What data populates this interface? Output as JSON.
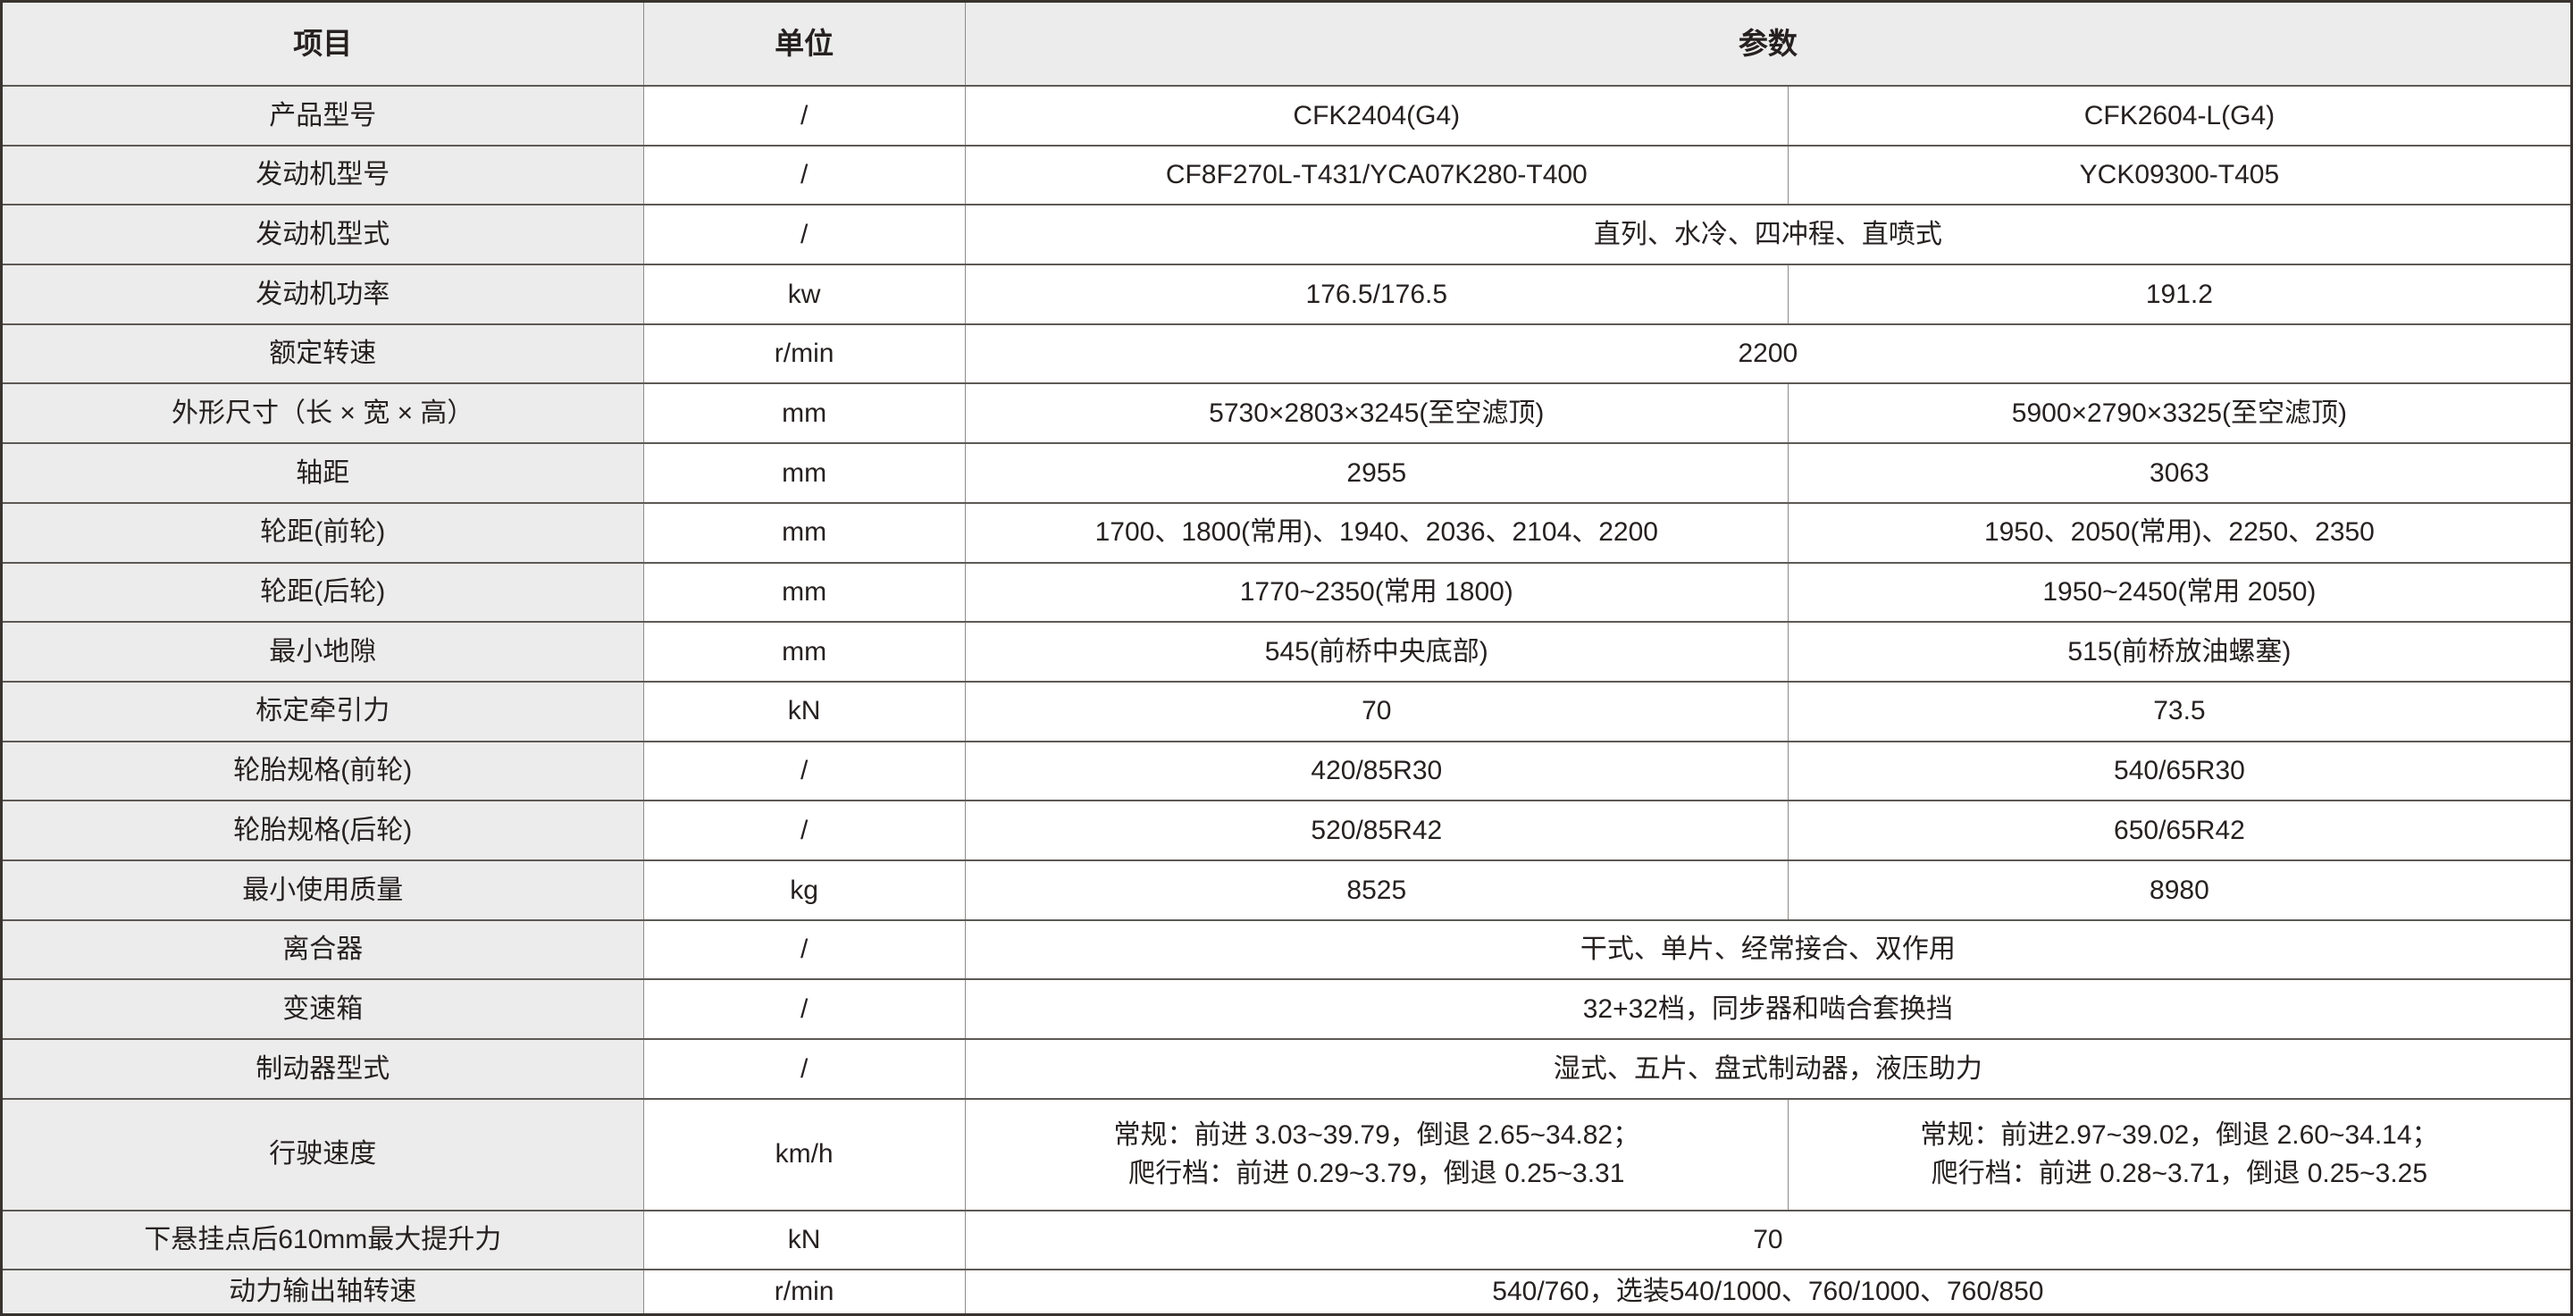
{
  "table": {
    "colors": {
      "header_bg": "#ececec",
      "item_col_bg": "#ececec",
      "border_dark": "#5d5955",
      "border_light": "#8f8c8a",
      "text": "#262120"
    },
    "headers": {
      "item": "项目",
      "unit": "单位",
      "param": "参数"
    },
    "rows": [
      {
        "item": "产品型号",
        "unit": "/",
        "merged": false,
        "p1": "CFK2404(G4)",
        "p2": "CFK2604-L(G4)"
      },
      {
        "item": "发动机型号",
        "unit": "/",
        "merged": false,
        "p1": "CF8F270L-T431/YCA07K280-T400",
        "p2": "YCK09300-T405"
      },
      {
        "item": "发动机型式",
        "unit": "/",
        "merged": true,
        "p1": "直列、水冷、四冲程、直喷式"
      },
      {
        "item": "发动机功率",
        "unit": "kw",
        "merged": false,
        "p1": "176.5/176.5",
        "p2": "191.2"
      },
      {
        "item": "额定转速",
        "unit": "r/min",
        "merged": true,
        "p1": "2200"
      },
      {
        "item": "外形尺寸（长 × 宽 × 高）",
        "unit": "mm",
        "merged": false,
        "p1": "5730×2803×3245(至空滤顶)",
        "p2": "5900×2790×3325(至空滤顶)"
      },
      {
        "item": "轴距",
        "unit": "mm",
        "merged": false,
        "p1": "2955",
        "p2": "3063"
      },
      {
        "item": "轮距(前轮)",
        "unit": "mm",
        "merged": false,
        "p1": "1700、1800(常用)、1940、2036、2104、2200",
        "p2": "1950、2050(常用)、2250、2350"
      },
      {
        "item": "轮距(后轮)",
        "unit": "mm",
        "merged": false,
        "p1": "1770~2350(常用 1800)",
        "p2": "1950~2450(常用 2050)"
      },
      {
        "item": "最小地隙",
        "unit": "mm",
        "merged": false,
        "p1": "545(前桥中央底部)",
        "p2": "515(前桥放油螺塞)"
      },
      {
        "item": "标定牵引力",
        "unit": "kN",
        "merged": false,
        "p1": "70",
        "p2": "73.5"
      },
      {
        "item": "轮胎规格(前轮)",
        "unit": "/",
        "merged": false,
        "p1": "420/85R30",
        "p2": "540/65R30"
      },
      {
        "item": "轮胎规格(后轮)",
        "unit": "/",
        "merged": false,
        "p1": "520/85R42",
        "p2": "650/65R42"
      },
      {
        "item": "最小使用质量",
        "unit": "kg",
        "merged": false,
        "p1": "8525",
        "p2": "8980"
      },
      {
        "item": "离合器",
        "unit": "/",
        "merged": true,
        "p1": "干式、单片、经常接合、双作用"
      },
      {
        "item": "变速箱",
        "unit": "/",
        "merged": true,
        "p1": "32+32档，同步器和啮合套换挡"
      },
      {
        "item": "制动器型式",
        "unit": "/",
        "merged": true,
        "p1": "湿式、五片、盘式制动器，液压助力"
      },
      {
        "item": "行驶速度",
        "unit": "km/h",
        "merged": false,
        "tall": true,
        "p1": "常规：前进 3.03~39.79，倒退 2.65~34.82；\n爬行档：前进 0.29~3.79，倒退 0.25~3.31",
        "p2": "常规：前进2.97~39.02，倒退 2.60~34.14；\n爬行档：前进 0.28~3.71，倒退 0.25~3.25"
      },
      {
        "item": "下悬挂点后610mm最大提升力",
        "unit": "kN",
        "merged": true,
        "p1": "70"
      },
      {
        "item": "动力输出轴转速",
        "unit": "r/min",
        "merged": true,
        "p1": "540/760，选装540/1000、760/1000、760/850"
      }
    ]
  }
}
